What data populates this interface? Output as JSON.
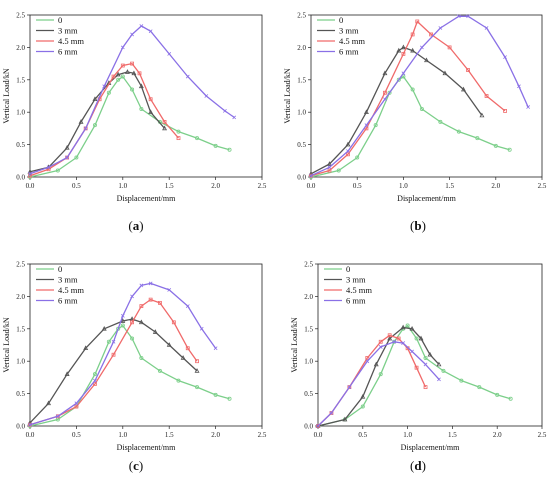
{
  "colors": {
    "0": "#7ccf8a",
    "3 mm": "#555555",
    "4.5 mm": "#f06a6a",
    "6 mm": "#8a70e6"
  },
  "chart_data": [
    {
      "type": "line",
      "panel": "a",
      "xlabel": "Displacement/mm",
      "ylabel": "Vertical Load/kN",
      "xlim": [
        0,
        2.5
      ],
      "ylim": [
        0,
        2.5
      ],
      "xticks": [
        "0.0",
        "0.5",
        "1.0",
        "1.5",
        "2.0",
        "2.5"
      ],
      "yticks": [
        "0.0",
        "0.5",
        "1.0",
        "1.5",
        "2.0",
        "2.5"
      ],
      "legend": "top-left",
      "series": [
        {
          "name": "0",
          "x": [
            0.0,
            0.3,
            0.5,
            0.7,
            0.85,
            0.95,
            1.0,
            1.1,
            1.2,
            1.4,
            1.6,
            1.8,
            2.0,
            2.15
          ],
          "y": [
            0.0,
            0.1,
            0.3,
            0.8,
            1.3,
            1.5,
            1.55,
            1.35,
            1.05,
            0.85,
            0.7,
            0.6,
            0.48,
            0.42
          ]
        },
        {
          "name": "3 mm",
          "x": [
            0.0,
            0.2,
            0.4,
            0.55,
            0.7,
            0.85,
            0.95,
            1.05,
            1.12,
            1.2,
            1.3,
            1.45
          ],
          "y": [
            0.08,
            0.15,
            0.45,
            0.85,
            1.2,
            1.45,
            1.58,
            1.62,
            1.6,
            1.4,
            1.0,
            0.75
          ]
        },
        {
          "name": "4.5 mm",
          "x": [
            0.0,
            0.2,
            0.4,
            0.6,
            0.75,
            0.9,
            1.0,
            1.1,
            1.18,
            1.3,
            1.45,
            1.6
          ],
          "y": [
            0.02,
            0.12,
            0.3,
            0.75,
            1.2,
            1.55,
            1.72,
            1.75,
            1.6,
            1.2,
            0.85,
            0.6
          ]
        },
        {
          "name": "6 mm",
          "x": [
            0.0,
            0.2,
            0.4,
            0.6,
            0.8,
            1.0,
            1.1,
            1.2,
            1.3,
            1.5,
            1.7,
            1.9,
            2.1,
            2.2
          ],
          "y": [
            0.05,
            0.15,
            0.3,
            0.75,
            1.4,
            2.0,
            2.2,
            2.33,
            2.25,
            1.9,
            1.55,
            1.25,
            1.02,
            0.92
          ]
        }
      ]
    },
    {
      "type": "line",
      "panel": "b",
      "xlabel": "Displacement/mm",
      "ylabel": "Vertical Load/kN",
      "xlim": [
        0,
        2.5
      ],
      "ylim": [
        0,
        2.5
      ],
      "xticks": [
        "0.0",
        "0.5",
        "1.0",
        "1.5",
        "2.0",
        "2.5"
      ],
      "yticks": [
        "0.0",
        "0.5",
        "1.0",
        "1.5",
        "2.0",
        "2.5"
      ],
      "legend": "top-left",
      "series": [
        {
          "name": "0",
          "x": [
            0.0,
            0.3,
            0.5,
            0.7,
            0.85,
            0.95,
            1.0,
            1.1,
            1.2,
            1.4,
            1.6,
            1.8,
            2.0,
            2.15
          ],
          "y": [
            0.0,
            0.1,
            0.3,
            0.8,
            1.3,
            1.5,
            1.55,
            1.35,
            1.05,
            0.85,
            0.7,
            0.6,
            0.48,
            0.42
          ]
        },
        {
          "name": "3 mm",
          "x": [
            0.0,
            0.2,
            0.4,
            0.6,
            0.8,
            0.95,
            1.0,
            1.1,
            1.25,
            1.45,
            1.65,
            1.85
          ],
          "y": [
            0.05,
            0.2,
            0.5,
            1.0,
            1.6,
            1.95,
            2.0,
            1.95,
            1.8,
            1.6,
            1.35,
            0.95
          ]
        },
        {
          "name": "4.5 mm",
          "x": [
            0.0,
            0.2,
            0.4,
            0.6,
            0.8,
            1.0,
            1.1,
            1.15,
            1.3,
            1.5,
            1.7,
            1.9,
            2.1
          ],
          "y": [
            0.02,
            0.1,
            0.35,
            0.75,
            1.3,
            1.9,
            2.2,
            2.4,
            2.2,
            2.0,
            1.65,
            1.25,
            1.02
          ]
        },
        {
          "name": "6 mm",
          "x": [
            0.0,
            0.2,
            0.4,
            0.6,
            0.8,
            1.0,
            1.2,
            1.4,
            1.6,
            1.7,
            1.9,
            2.1,
            2.25,
            2.35
          ],
          "y": [
            0.02,
            0.15,
            0.4,
            0.8,
            1.2,
            1.6,
            2.0,
            2.3,
            2.48,
            2.48,
            2.3,
            1.85,
            1.4,
            1.08
          ]
        }
      ]
    },
    {
      "type": "line",
      "panel": "c",
      "xlabel": "Displacement/mm",
      "ylabel": "Vertical Load/kN",
      "xlim": [
        0,
        2.5
      ],
      "ylim": [
        0,
        2.5
      ],
      "xticks": [
        "0.0",
        "0.5",
        "1.0",
        "1.5",
        "2.0",
        "2.5"
      ],
      "yticks": [
        "0.0",
        "0.5",
        "1.0",
        "1.5",
        "2.0",
        "2.5"
      ],
      "legend": "top-left",
      "series": [
        {
          "name": "0",
          "x": [
            0.0,
            0.3,
            0.5,
            0.7,
            0.85,
            0.95,
            1.0,
            1.1,
            1.2,
            1.4,
            1.6,
            1.8,
            2.0,
            2.15
          ],
          "y": [
            0.0,
            0.1,
            0.3,
            0.8,
            1.3,
            1.5,
            1.55,
            1.35,
            1.05,
            0.85,
            0.7,
            0.6,
            0.48,
            0.42
          ]
        },
        {
          "name": "3 mm",
          "x": [
            0.0,
            0.2,
            0.4,
            0.6,
            0.8,
            1.0,
            1.1,
            1.2,
            1.35,
            1.5,
            1.65,
            1.8
          ],
          "y": [
            0.05,
            0.35,
            0.8,
            1.2,
            1.5,
            1.62,
            1.65,
            1.6,
            1.45,
            1.25,
            1.05,
            0.85
          ]
        },
        {
          "name": "4.5 mm",
          "x": [
            0.0,
            0.3,
            0.5,
            0.7,
            0.9,
            1.1,
            1.2,
            1.3,
            1.4,
            1.55,
            1.7,
            1.8
          ],
          "y": [
            0.02,
            0.15,
            0.3,
            0.65,
            1.1,
            1.6,
            1.85,
            1.95,
            1.9,
            1.6,
            1.2,
            1.0
          ]
        },
        {
          "name": "6 mm",
          "x": [
            0.0,
            0.3,
            0.5,
            0.7,
            0.9,
            1.0,
            1.1,
            1.2,
            1.3,
            1.5,
            1.7,
            1.85,
            2.0
          ],
          "y": [
            0.02,
            0.15,
            0.35,
            0.7,
            1.3,
            1.7,
            2.0,
            2.17,
            2.2,
            2.1,
            1.85,
            1.5,
            1.2
          ]
        }
      ]
    },
    {
      "type": "line",
      "panel": "d",
      "xlabel": "Displacement/mm",
      "ylabel": "Vertical Load/kN",
      "xlim": [
        0,
        2.5
      ],
      "ylim": [
        0,
        2.5
      ],
      "xticks": [
        "0.0",
        "0.5",
        "1.0",
        "1.5",
        "2.0",
        "2.5"
      ],
      "yticks": [
        "0.0",
        "0.5",
        "1.0",
        "1.5",
        "2.0",
        "2.5"
      ],
      "legend": "top-left",
      "series": [
        {
          "name": "0",
          "x": [
            0.0,
            0.3,
            0.5,
            0.7,
            0.85,
            0.95,
            1.0,
            1.1,
            1.2,
            1.4,
            1.6,
            1.8,
            2.0,
            2.15
          ],
          "y": [
            0.0,
            0.1,
            0.3,
            0.8,
            1.3,
            1.5,
            1.55,
            1.35,
            1.05,
            0.85,
            0.7,
            0.6,
            0.48,
            0.42
          ]
        },
        {
          "name": "3 mm",
          "x": [
            0.0,
            0.3,
            0.5,
            0.65,
            0.8,
            0.95,
            1.05,
            1.15,
            1.25,
            1.35
          ],
          "y": [
            0.0,
            0.1,
            0.45,
            0.95,
            1.35,
            1.52,
            1.5,
            1.35,
            1.1,
            0.95
          ]
        },
        {
          "name": "4.5 mm",
          "x": [
            0.0,
            0.15,
            0.35,
            0.55,
            0.7,
            0.8,
            0.9,
            1.0,
            1.1,
            1.2
          ],
          "y": [
            0.0,
            0.2,
            0.6,
            1.05,
            1.3,
            1.4,
            1.35,
            1.2,
            0.9,
            0.6
          ]
        },
        {
          "name": "6 mm",
          "x": [
            0.0,
            0.15,
            0.35,
            0.55,
            0.7,
            0.85,
            0.95,
            1.05,
            1.2,
            1.35
          ],
          "y": [
            0.0,
            0.2,
            0.6,
            1.0,
            1.22,
            1.3,
            1.28,
            1.15,
            0.95,
            0.72
          ]
        }
      ]
    }
  ],
  "captions": [
    {
      "open": "(",
      "letter": "a",
      "close": ")"
    },
    {
      "open": "(",
      "letter": "b",
      "close": ")"
    },
    {
      "open": "(",
      "letter": "c",
      "close": ")"
    },
    {
      "open": "(",
      "letter": "d",
      "close": ")"
    }
  ]
}
